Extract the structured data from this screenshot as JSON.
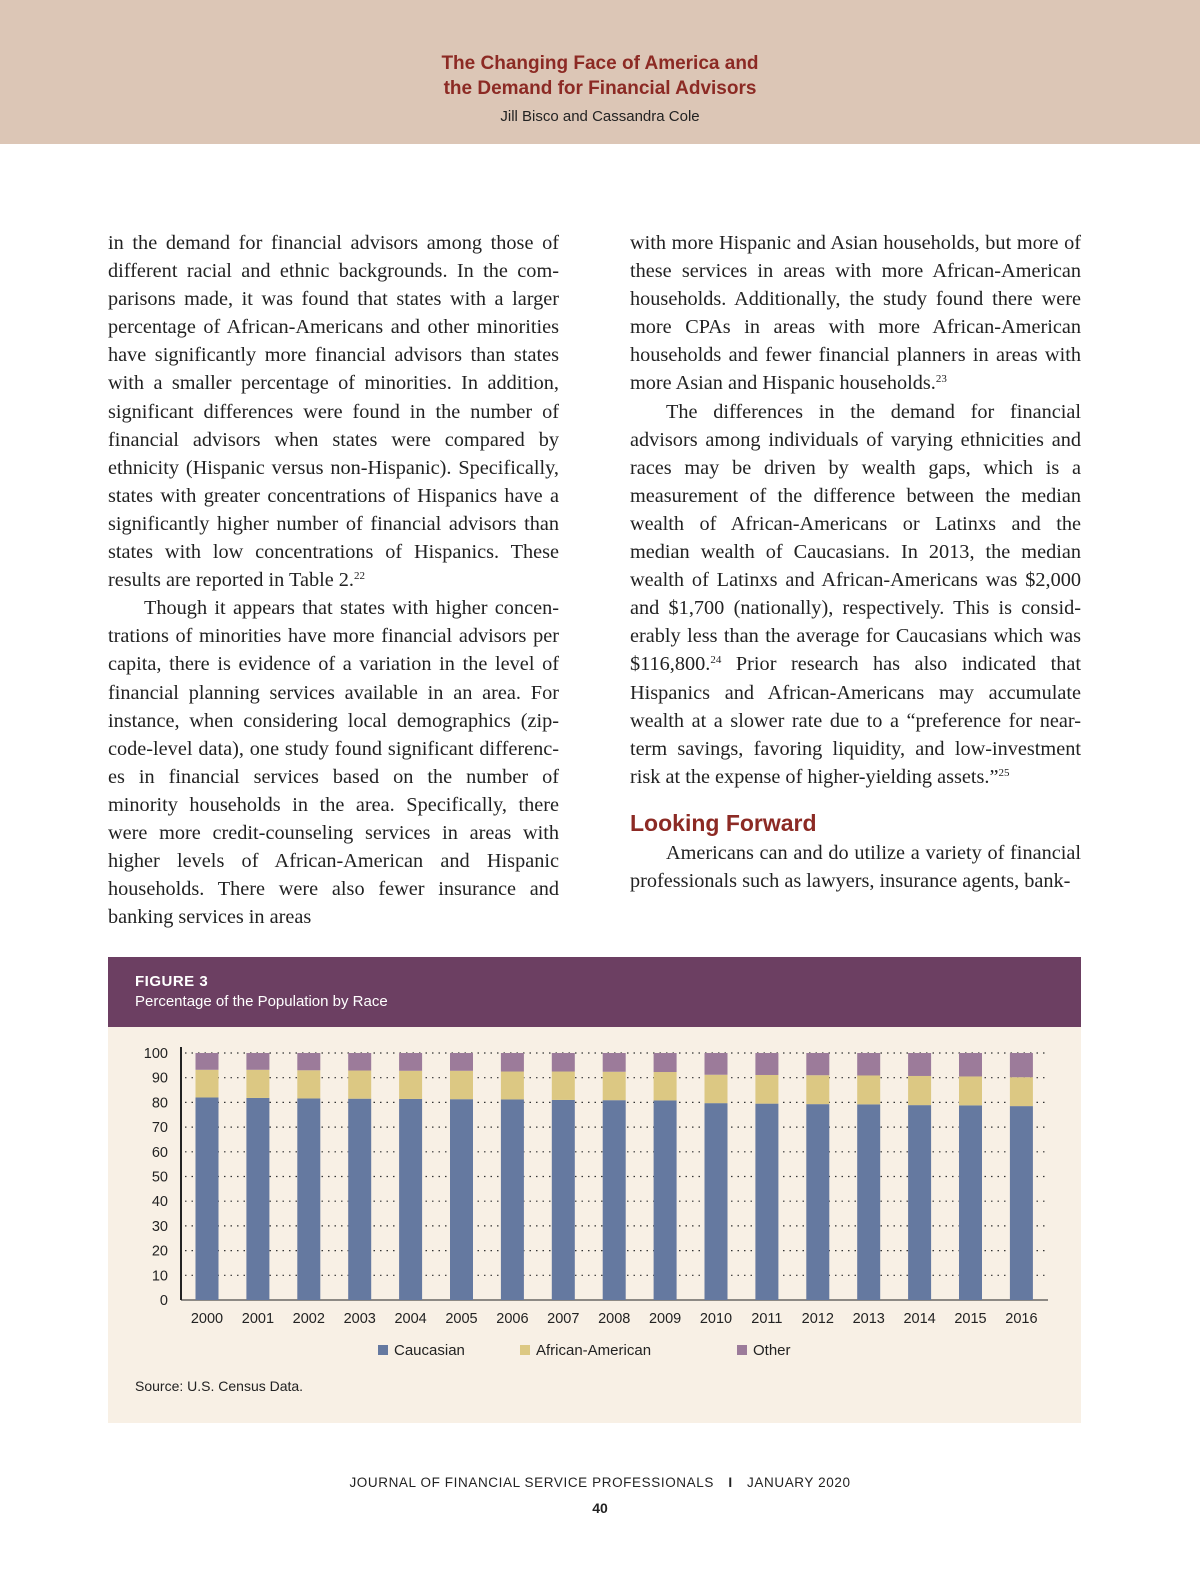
{
  "header": {
    "title_line1": "The Changing Face of America and",
    "title_line2": "the Demand for Financial Advisors",
    "authors": "Jill Bisco and Cassandra Cole"
  },
  "left_column": {
    "p1": "in the demand for financial advisors among those of different racial and ethnic backgrounds. In the com­parisons made, it was found that states with a larger percentage of African-Americans and other minori­ties have significantly more financial advisors than states with a smaller percentage of minorities. In ad­dition, significant differences were found in the num­ber of financial advisors when states were compared by ethnicity (Hispanic versus non-Hispanic). Specif­ically, states with greater concentrations of Hispanics have a significantly higher number of financial advi­sors than states with low concentrations of Hispanics. These results are reported in Table 2.",
    "p1_note": "22",
    "p2": "Though it appears that states with higher concen­trations of minorities have more financial advisors per capita, there is evidence of a variation in the level of financial planning services available in an area. For instance, when considering local demographics (zip-code-level data), one study found significant differenc­es in financial services based on the number of minority households in the area. Specifically, there were more credit-counseling services in areas with higher levels of African-American and Hispanic households. There were also fewer insurance and banking services in areas"
  },
  "right_column": {
    "p1": "with more Hispanic and Asian households, but more of these services in areas with more African-American households. Additionally, the study found there were more CPAs in areas with more African-American households and fewer financial planners in areas with more Asian and Hispanic households.",
    "p1_note": "23",
    "p2a": "The differences in the demand for financial advisors among individuals of varying ethnicities and races may be driven by wealth gaps, which is a measurement of the difference between the medi­an wealth of African-Americans or Latinxs and the median wealth of Caucasians. In 2013, the median wealth of Latinxs and African-Americans was $2,000 and $1,700 (nationally), respectively. This is consid­erably less than the average for Caucasians which was $116,800.",
    "p2a_note": "24",
    "p2b": " Prior research has also indicated that Hispanics and African-Americans may accumulate wealth at a slower rate due to a “preference for near-term savings, favoring liquidity, and low-investment risk at the expense of higher-yielding assets.”",
    "p2b_note": "25",
    "section_heading": "Looking Forward",
    "p3": "Americans can and do utilize a variety of financial professionals such as lawyers, insurance agents, bank-"
  },
  "figure": {
    "label": "FIGURE 3",
    "caption": "Percentage of the Population by Race",
    "source": "Source: U.S. Census Data."
  },
  "chart_data": {
    "type": "bar",
    "stacked": true,
    "title": "Percentage of the Population by Race",
    "categories": [
      "2000",
      "2001",
      "2002",
      "2003",
      "2004",
      "2005",
      "2006",
      "2007",
      "2008",
      "2009",
      "2010",
      "2011",
      "2012",
      "2013",
      "2014",
      "2015",
      "2016"
    ],
    "series": [
      {
        "name": "Caucasian",
        "color": "#6579a0",
        "values": [
          82.0,
          81.8,
          81.6,
          81.5,
          81.4,
          81.3,
          81.2,
          81.0,
          80.9,
          80.8,
          79.7,
          79.5,
          79.3,
          79.2,
          78.9,
          78.8,
          78.5
        ]
      },
      {
        "name": "African-American",
        "color": "#dcc883",
        "values": [
          11.2,
          11.4,
          11.4,
          11.4,
          11.4,
          11.5,
          11.3,
          11.5,
          11.5,
          11.5,
          11.5,
          11.6,
          11.7,
          11.7,
          11.8,
          11.7,
          11.7
        ]
      },
      {
        "name": "Other",
        "color": "#9c7b9a",
        "values": [
          6.8,
          6.8,
          7.0,
          7.1,
          7.2,
          7.2,
          7.5,
          7.5,
          7.6,
          7.7,
          8.8,
          8.9,
          9.0,
          9.1,
          9.3,
          9.5,
          9.8
        ]
      }
    ],
    "yticks": [
      0,
      10,
      20,
      30,
      40,
      50,
      60,
      70,
      80,
      90,
      100
    ],
    "ylim": [
      0,
      100
    ],
    "grid": true,
    "legend": "bottom"
  },
  "footer": {
    "journal": "JOURNAL OF FINANCIAL SERVICE PROFESSIONALS",
    "separator": "I",
    "date": "JANUARY 2020",
    "page_number": "40"
  }
}
